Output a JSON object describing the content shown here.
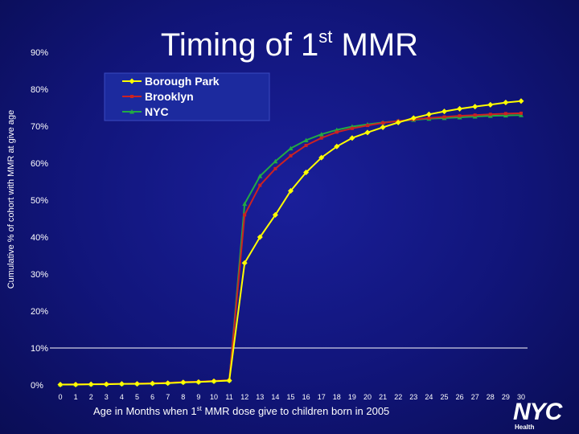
{
  "title": {
    "main": "Timing of 1",
    "sup": "st",
    "rest": " MMR"
  },
  "axes": {
    "ylabel": "Cumulative % of cohort with MMR at give age",
    "xlabel_pre": "Age in Months when 1",
    "xlabel_sup": "st",
    "xlabel_post": " MMR dose give to children born in 2005"
  },
  "logo": {
    "mark": "NYC",
    "sub": "Health"
  },
  "colors": {
    "background": "#11157a",
    "legend_box": "#1c2a9e",
    "borough_park": "#ffff00",
    "brooklyn": "#cc2222",
    "nyc": "#22aa44",
    "axis_text": "#ffffff"
  },
  "chart_data": {
    "type": "line",
    "xlabel": "Age in Months when 1st MMR dose give to children born in 2005",
    "ylabel": "Cumulative % of cohort with MMR at give age",
    "x": [
      0,
      1,
      2,
      3,
      4,
      5,
      6,
      7,
      8,
      9,
      10,
      11,
      12,
      13,
      14,
      15,
      16,
      17,
      18,
      19,
      20,
      21,
      22,
      23,
      24,
      25,
      26,
      27,
      28,
      29,
      30
    ],
    "ylim": [
      0,
      90
    ],
    "yticks": [
      "0%",
      "10%",
      "20%",
      "30%",
      "40%",
      "50%",
      "60%",
      "70%",
      "80%",
      "90%"
    ],
    "xticks": [
      "0",
      "1",
      "2",
      "3",
      "4",
      "5",
      "6",
      "7",
      "8",
      "9",
      "10",
      "11",
      "12",
      "13",
      "14",
      "15",
      "16",
      "17",
      "18",
      "19",
      "20",
      "21",
      "22",
      "23",
      "24",
      "25",
      "26",
      "27",
      "28",
      "29",
      "30"
    ],
    "legend_position": "top-left",
    "grid": false,
    "series": [
      {
        "name": "Borough Park",
        "color": "#ffff00",
        "marker": "diamond",
        "values": [
          0.1,
          0.1,
          0.2,
          0.2,
          0.3,
          0.3,
          0.4,
          0.5,
          0.7,
          0.8,
          1.0,
          1.2,
          33,
          40,
          46,
          52.5,
          57.5,
          61.5,
          64.5,
          66.8,
          68.3,
          69.7,
          71,
          72.2,
          73.2,
          74,
          74.7,
          75.3,
          75.8,
          76.4,
          76.8
        ]
      },
      {
        "name": "Brooklyn",
        "color": "#cc2222",
        "marker": "square",
        "values": [
          0.1,
          0.2,
          0.2,
          0.3,
          0.3,
          0.4,
          0.5,
          0.6,
          0.8,
          0.9,
          1.1,
          1.3,
          46,
          54,
          58.5,
          62,
          64.8,
          66.8,
          68.4,
          69.4,
          70.2,
          70.9,
          71.4,
          71.8,
          72.2,
          72.5,
          72.8,
          73,
          73.2,
          73.4,
          73.5
        ]
      },
      {
        "name": "NYC",
        "color": "#22aa44",
        "marker": "triangle",
        "values": [
          0.1,
          0.2,
          0.2,
          0.3,
          0.3,
          0.4,
          0.5,
          0.6,
          0.8,
          0.9,
          1.1,
          1.3,
          49,
          56.5,
          60.5,
          64,
          66.2,
          67.8,
          69,
          69.9,
          70.5,
          71,
          71.4,
          71.7,
          72,
          72.2,
          72.4,
          72.6,
          72.8,
          72.9,
          73
        ]
      }
    ]
  }
}
